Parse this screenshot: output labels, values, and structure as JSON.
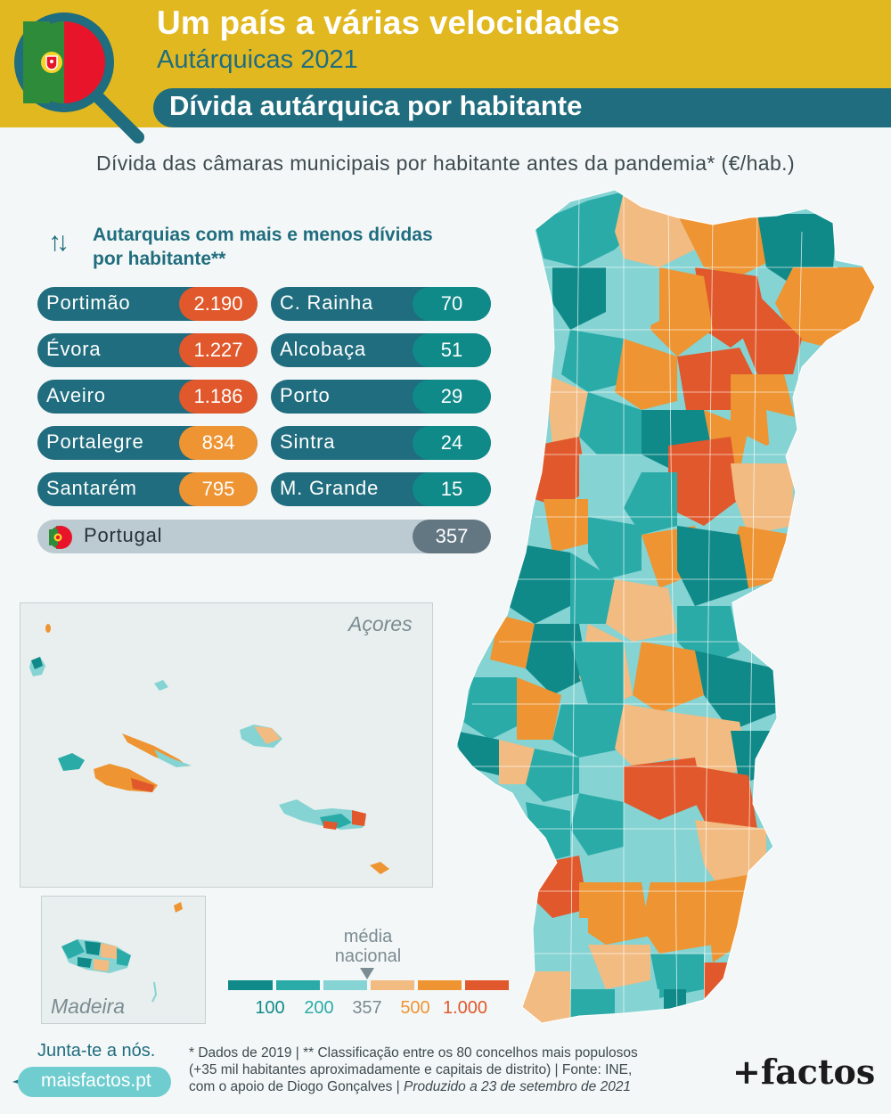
{
  "header": {
    "title": "Um país a várias velocidades",
    "subtitle": "Autárquicas 2021",
    "band": "Dívida autárquica por habitante"
  },
  "map_subtitle": "Dívida das câmaras municipais por habitante antes da pandemia* (€/hab.)",
  "ranking": {
    "title_line1": "Autarquias com mais e menos dívidas",
    "title_line2": "por habitante**",
    "most": [
      {
        "name": "Portimão",
        "value": "2.190",
        "color": "#e0582b"
      },
      {
        "name": "Évora",
        "value": "1.227",
        "color": "#e0582b"
      },
      {
        "name": "Aveiro",
        "value": "1.186",
        "color": "#e0582b"
      },
      {
        "name": "Portalegre",
        "value": "834",
        "color": "#ee9432"
      },
      {
        "name": "Santarém",
        "value": "795",
        "color": "#ee9432"
      }
    ],
    "least": [
      {
        "name": "C. Rainha",
        "value": "70",
        "color": "#0f8a89"
      },
      {
        "name": "Alcobaça",
        "value": "51",
        "color": "#0f8a89"
      },
      {
        "name": "Porto",
        "value": "29",
        "color": "#0f8a89"
      },
      {
        "name": "Sintra",
        "value": "24",
        "color": "#0f8a89"
      },
      {
        "name": "M. Grande",
        "value": "15",
        "color": "#0f8a89"
      }
    ],
    "national": {
      "name": "Portugal",
      "value": "357"
    }
  },
  "regions": {
    "azores": "Açores",
    "madeira": "Madeira"
  },
  "legend": {
    "media_line1": "média",
    "media_line2": "nacional",
    "colors": [
      "#0f8a89",
      "#2aaba8",
      "#85d3d3",
      "#f2bb82",
      "#ee9432",
      "#e0582b"
    ],
    "ticks": [
      {
        "label": "100",
        "color": "#0f8a89"
      },
      {
        "label": "200",
        "color": "#2aaba8"
      },
      {
        "label": "357",
        "color": "#7b8c92"
      },
      {
        "label": "500",
        "color": "#ee9432"
      },
      {
        "label": "1.000",
        "color": "#e0582b"
      }
    ]
  },
  "footer": {
    "join": "Junta-te a nós.",
    "site": "maisfactos.pt",
    "note_line1": "* Dados de 2019 | ** Classificação entre os 80 concelhos mais populosos",
    "note_line2": "(+35 mil habitantes aproximadamente e capitais de distrito) | Fonte: INE,",
    "note_line3": "com o apoio de Diogo Gonçalves |",
    "note_produced": "Produzido a 23 de setembro de 2021",
    "brand": "+factos"
  },
  "icons": [
    "magnifier-portugal-flag-icon",
    "up-down-arrows-icon",
    "portugal-flag-icon",
    "paper-plane-icon"
  ]
}
